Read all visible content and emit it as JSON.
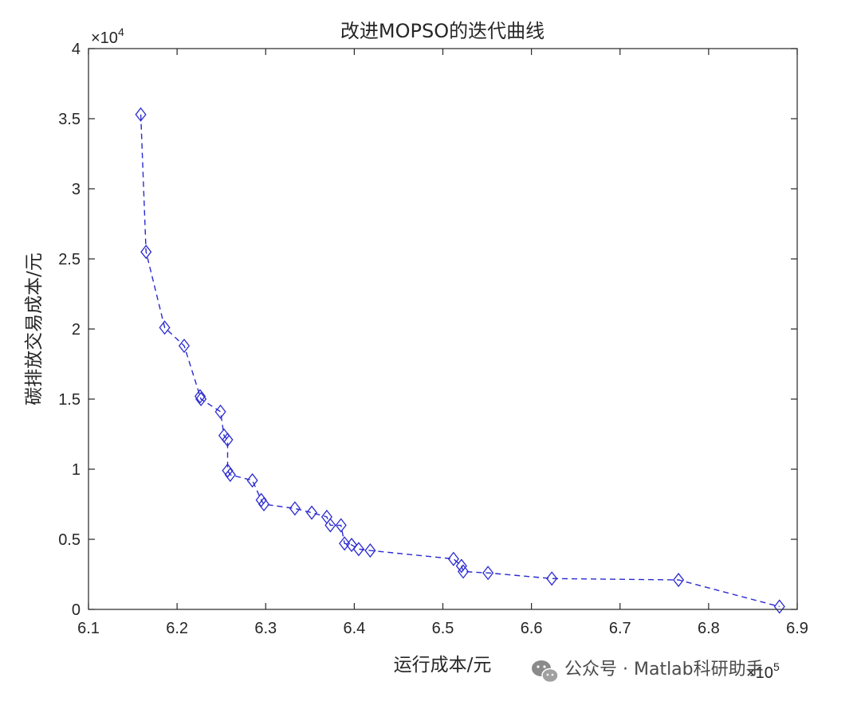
{
  "chart_data": {
    "type": "line",
    "title": "改进MOPSO的迭代曲线",
    "xlabel": "运行成本/元",
    "ylabel": "碳排放交易成本/元",
    "x_exponent_label": "×10",
    "x_exponent_power": "5",
    "y_exponent_label": "×10",
    "y_exponent_power": "4",
    "x_scale": 100000,
    "y_scale": 10000,
    "xlim": [
      6.1,
      6.9
    ],
    "ylim": [
      0,
      4
    ],
    "xticks": [
      6.1,
      6.2,
      6.3,
      6.4,
      6.5,
      6.6,
      6.7,
      6.8,
      6.9
    ],
    "xtick_labels": [
      "6.1",
      "6.2",
      "6.3",
      "6.4",
      "6.5",
      "6.6",
      "6.7",
      "6.8",
      "6.9"
    ],
    "yticks": [
      0,
      0.5,
      1,
      1.5,
      2,
      2.5,
      3,
      3.5,
      4
    ],
    "ytick_labels": [
      "0",
      "0.5",
      "1",
      "1.5",
      "2",
      "2.5",
      "3",
      "3.5",
      "4"
    ],
    "grid": false,
    "line_style": "dashed",
    "marker": "diamond",
    "color": "#2a2ad0",
    "series": [
      {
        "points": [
          [
            6.159,
            3.53
          ],
          [
            6.165,
            2.55
          ],
          [
            6.186,
            2.01
          ],
          [
            6.208,
            1.88
          ],
          [
            6.226,
            1.52
          ],
          [
            6.227,
            1.5
          ],
          [
            6.249,
            1.41
          ],
          [
            6.253,
            1.24
          ],
          [
            6.257,
            1.21
          ],
          [
            6.257,
            0.99
          ],
          [
            6.26,
            0.96
          ],
          [
            6.285,
            0.92
          ],
          [
            6.295,
            0.78
          ],
          [
            6.298,
            0.75
          ],
          [
            6.333,
            0.72
          ],
          [
            6.352,
            0.69
          ],
          [
            6.369,
            0.66
          ],
          [
            6.373,
            0.6
          ],
          [
            6.385,
            0.6
          ],
          [
            6.389,
            0.47
          ],
          [
            6.397,
            0.46
          ],
          [
            6.405,
            0.43
          ],
          [
            6.418,
            0.42
          ],
          [
            6.512,
            0.36
          ],
          [
            6.521,
            0.31
          ],
          [
            6.523,
            0.27
          ],
          [
            6.551,
            0.26
          ],
          [
            6.623,
            0.22
          ],
          [
            6.766,
            0.21
          ],
          [
            6.88,
            0.02
          ]
        ]
      }
    ]
  },
  "watermark": {
    "text": "公众号 · Matlab科研助手",
    "icon": "wechat-icon"
  }
}
